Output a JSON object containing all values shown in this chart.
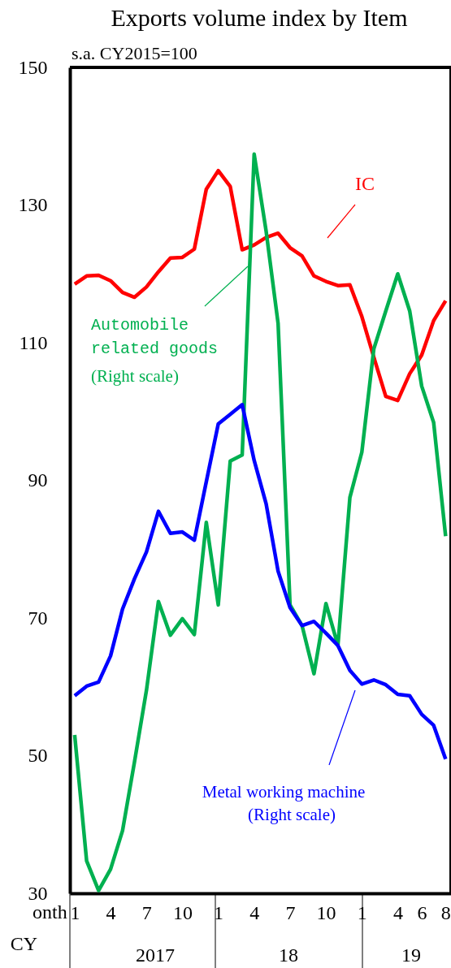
{
  "chart_data": {
    "type": "line",
    "title": "Exports volume index by Item",
    "subtitle": "s.a. CY2015=100",
    "categories": [
      "1",
      null,
      null,
      "4",
      null,
      null,
      "7",
      null,
      null,
      "10",
      null,
      null,
      "1",
      null,
      null,
      "4",
      null,
      null,
      "7",
      null,
      null,
      "10",
      null,
      null,
      "1",
      null,
      null,
      "4",
      null,
      "6",
      null,
      "8"
    ],
    "series": [
      {
        "name": "IC",
        "color": "#ff0000",
        "values": [
          118.5,
          119.7,
          119.8,
          119.0,
          117.3,
          116.6,
          118.1,
          120.3,
          122.3,
          122.4,
          123.6,
          132.3,
          135.0,
          132.7,
          123.5,
          124.2,
          125.3,
          125.9,
          123.8,
          122.6,
          119.7,
          118.9,
          118.3,
          118.4,
          113.8,
          107.9,
          102.2,
          101.6,
          105.5,
          108.2,
          113.2,
          116.1
        ]
      },
      {
        "name": "Automobile related goods",
        "color": "#00b050",
        "values": [
          53.0,
          34.7,
          30.4,
          33.5,
          39.1,
          49.1,
          59.5,
          72.4,
          67.5,
          69.9,
          67.6,
          83.9,
          71.9,
          92.8,
          93.7,
          137.4,
          126.2,
          112.8,
          71.9,
          68.9,
          61.9,
          72.1,
          66.0,
          87.5,
          94.1,
          109.1,
          114.6,
          120.0,
          114.6,
          103.7,
          98.4,
          81.9
        ]
      },
      {
        "name": "Metal working machine",
        "color": "#0000ff",
        "values": [
          58.7,
          60.1,
          60.7,
          64.5,
          71.3,
          75.7,
          79.6,
          85.5,
          82.3,
          82.5,
          81.3,
          89.8,
          98.2,
          99.6,
          101.0,
          92.9,
          86.6,
          76.8,
          71.5,
          68.9,
          69.5,
          67.8,
          66.0,
          62.4,
          60.4,
          61.0,
          60.3,
          58.9,
          58.7,
          56.0,
          54.4,
          49.5
        ]
      }
    ],
    "ylim": [
      30,
      150
    ],
    "yticks": [
      30,
      50,
      70,
      90,
      110,
      130,
      150
    ],
    "annotations": [
      "(Right scale)",
      "(Right scale)",
      "2017",
      "18",
      "19",
      "onth",
      "CY"
    ],
    "grid": false,
    "line_style": "solid",
    "marker": "none"
  }
}
